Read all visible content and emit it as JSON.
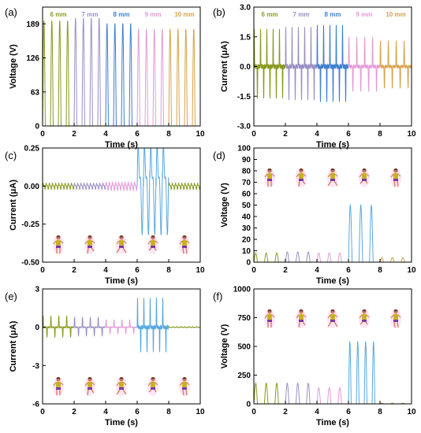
{
  "colors": {
    "6mm": "#8a9a1e",
    "7mm": "#9b8fc4",
    "8mm": "#3f7fd0",
    "9mm": "#e39ad6",
    "10mm": "#d8a24a"
  },
  "runner_icons": [
    "runner-pose-1-icon",
    "runner-pose-2-icon",
    "runner-pose-3-icon",
    "runner-pose-4-icon",
    "runner-pose-5-icon"
  ],
  "chart_data": [
    {
      "panel": "(a)",
      "type": "line",
      "xlabel": "Time (s)",
      "ylabel": "Voltage (V)",
      "xlim": [
        0,
        10
      ],
      "ylim": [
        0,
        220
      ],
      "xticks": [
        "0",
        "2",
        "4",
        "6",
        "8",
        "10"
      ],
      "yticks": [
        "0",
        "63",
        "126",
        "189"
      ],
      "ytick_values": [
        0,
        63,
        126,
        189
      ],
      "signal": "pulse",
      "series": [
        {
          "name": "6 mm",
          "color": "#8a9a1e",
          "x_range": [
            0,
            2
          ],
          "peaks": 4,
          "amplitude": 195
        },
        {
          "name": "7 mm",
          "color": "#9b8fc4",
          "x_range": [
            2,
            4
          ],
          "peaks": 4,
          "amplitude": 200
        },
        {
          "name": "8 mm",
          "color": "#3f7fd0",
          "x_range": [
            4,
            6
          ],
          "peaks": 4,
          "amplitude": 190
        },
        {
          "name": "9 mm",
          "color": "#e39ad6",
          "x_range": [
            6,
            8
          ],
          "peaks": 4,
          "amplitude": 180
        },
        {
          "name": "10 mm",
          "color": "#d8a24a",
          "x_range": [
            8,
            10
          ],
          "peaks": 4,
          "amplitude": 180
        }
      ]
    },
    {
      "panel": "(b)",
      "type": "line",
      "xlabel": "Time (s)",
      "ylabel": "Current (μA)",
      "xlim": [
        0,
        10
      ],
      "ylim": [
        -3.0,
        3.0
      ],
      "xticks": [
        "0",
        "2",
        "4",
        "6",
        "8",
        "10"
      ],
      "yticks": [
        "-3.0",
        "-1.5",
        "0.0",
        "1.5",
        "3.0"
      ],
      "ytick_values": [
        -3.0,
        -1.5,
        0.0,
        1.5,
        3.0
      ],
      "signal": "bipolar",
      "series": [
        {
          "name": "6 mm",
          "color": "#8a9a1e",
          "x_range": [
            0,
            2
          ],
          "peaks": 5,
          "amplitude": 1.9
        },
        {
          "name": "7 mm",
          "color": "#9b8fc4",
          "x_range": [
            2,
            4
          ],
          "peaks": 5,
          "amplitude": 2.0
        },
        {
          "name": "8 mm",
          "color": "#3f7fd0",
          "x_range": [
            4,
            6
          ],
          "peaks": 5,
          "amplitude": 2.1
        },
        {
          "name": "9 mm",
          "color": "#e39ad6",
          "x_range": [
            6,
            8
          ],
          "peaks": 4,
          "amplitude": 1.5
        },
        {
          "name": "10 mm",
          "color": "#d8a24a",
          "x_range": [
            8,
            10
          ],
          "peaks": 4,
          "amplitude": 1.3
        }
      ]
    },
    {
      "panel": "(c)",
      "type": "line",
      "xlabel": "Time (s)",
      "ylabel": "Current (μA)",
      "xlim": [
        0,
        10
      ],
      "ylim": [
        -0.5,
        0.25
      ],
      "xticks": [
        "0",
        "2",
        "4",
        "6",
        "8",
        "10"
      ],
      "yticks": [
        "-0.50",
        "-0.25",
        "0.00",
        "0.25"
      ],
      "ytick_values": [
        -0.5,
        -0.25,
        0.0,
        0.25
      ],
      "signal": "noise",
      "runner_icons": true,
      "icons_position": "bottom",
      "series": [
        {
          "color": "#8a9a1e",
          "x_range": [
            0,
            2
          ],
          "peaks": 10,
          "amplitude": 0.015
        },
        {
          "color": "#9b8fc4",
          "x_range": [
            2,
            4
          ],
          "peaks": 10,
          "amplitude": 0.015
        },
        {
          "color": "#e39ad6",
          "x_range": [
            4,
            6
          ],
          "peaks": 10,
          "amplitude": 0.02
        },
        {
          "color": "#5aa8e0",
          "x_range": [
            6,
            8
          ],
          "peaks": 5,
          "amplitude": 0.22
        },
        {
          "color": "#8a9a1e",
          "x_range": [
            8,
            10
          ],
          "peaks": 10,
          "amplitude": 0.015
        }
      ]
    },
    {
      "panel": "(d)",
      "type": "line",
      "xlabel": "Time (s)",
      "ylabel": "Voltage (V)",
      "xlim": [
        0,
        10
      ],
      "ylim": [
        0,
        100
      ],
      "xticks": [
        "0",
        "2",
        "4",
        "6",
        "8",
        "10"
      ],
      "yticks": [
        "0",
        "10",
        "20",
        "30",
        "40",
        "50",
        "60",
        "70",
        "80",
        "90",
        "100"
      ],
      "ytick_values": [
        0,
        10,
        20,
        30,
        40,
        50,
        60,
        70,
        80,
        90,
        100
      ],
      "signal": "pulse",
      "runner_icons": true,
      "icons_position": "top",
      "series": [
        {
          "color": "#8a9a1e",
          "x_range": [
            0,
            2
          ],
          "peaks": 3,
          "amplitude": 8
        },
        {
          "color": "#9b8fc4",
          "x_range": [
            2,
            4
          ],
          "peaks": 3,
          "amplitude": 9
        },
        {
          "color": "#e39ad6",
          "x_range": [
            4,
            6
          ],
          "peaks": 3,
          "amplitude": 8
        },
        {
          "color": "#5aa8e0",
          "x_range": [
            6,
            8
          ],
          "peaks": 3,
          "amplitude": 50
        },
        {
          "color": "#d8a24a",
          "x_range": [
            8,
            10
          ],
          "peaks": 3,
          "amplitude": 4
        }
      ]
    },
    {
      "panel": "(e)",
      "type": "line",
      "xlabel": "Time (s)",
      "ylabel": "Current (μA)",
      "xlim": [
        0,
        10
      ],
      "ylim": [
        -6,
        3
      ],
      "xticks": [
        "0",
        "2",
        "4",
        "6",
        "8",
        "10"
      ],
      "yticks": [
        "-6",
        "-3",
        "0",
        "3"
      ],
      "ytick_values": [
        -6,
        -3,
        0,
        3
      ],
      "signal": "bipolar",
      "runner_icons": true,
      "icons_position": "bottom",
      "series": [
        {
          "color": "#8a9a1e",
          "x_range": [
            0,
            2
          ],
          "peaks": 4,
          "amplitude": 0.9
        },
        {
          "color": "#9b8fc4",
          "x_range": [
            2,
            4
          ],
          "peaks": 4,
          "amplitude": 0.8
        },
        {
          "color": "#e39ad6",
          "x_range": [
            4,
            6
          ],
          "peaks": 4,
          "amplitude": 0.6
        },
        {
          "color": "#5aa8e0",
          "x_range": [
            6,
            8
          ],
          "peaks": 5,
          "amplitude": 2.3
        },
        {
          "color": "#8a9a1e",
          "x_range": [
            8,
            10
          ],
          "peaks": 8,
          "amplitude": 0.05
        }
      ]
    },
    {
      "panel": "(f)",
      "type": "line",
      "xlabel": "Time (s)",
      "ylabel": "Voltage (V)",
      "xlim": [
        0,
        10
      ],
      "ylim": [
        0,
        1000
      ],
      "xticks": [
        "0",
        "2",
        "4",
        "6",
        "8",
        "10"
      ],
      "yticks": [
        "0",
        "250",
        "500",
        "750",
        "1000"
      ],
      "ytick_values": [
        0,
        250,
        500,
        750,
        1000
      ],
      "signal": "pulse",
      "runner_icons": true,
      "icons_position": "top",
      "series": [
        {
          "color": "#8a9a1e",
          "x_range": [
            0,
            2
          ],
          "peaks": 3,
          "amplitude": 180
        },
        {
          "color": "#9b8fc4",
          "x_range": [
            2,
            4
          ],
          "peaks": 3,
          "amplitude": 180
        },
        {
          "color": "#e39ad6",
          "x_range": [
            4,
            6
          ],
          "peaks": 3,
          "amplitude": 140
        },
        {
          "color": "#5aa8e0",
          "x_range": [
            6,
            8
          ],
          "peaks": 4,
          "amplitude": 540
        },
        {
          "color": "#8a9a1e",
          "x_range": [
            8,
            10
          ],
          "peaks": 3,
          "amplitude": 5
        }
      ]
    }
  ]
}
